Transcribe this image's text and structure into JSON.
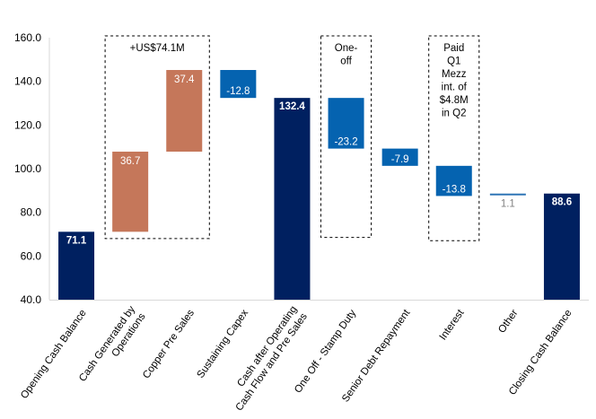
{
  "chart_data": {
    "type": "waterfall",
    "title": "",
    "xlabel": "",
    "ylabel": "",
    "ylim": [
      40,
      160
    ],
    "yticks": [
      40,
      60,
      80,
      100,
      120,
      140,
      160
    ],
    "ytick_labels": [
      "40.0",
      "60.0",
      "80.0",
      "100.0",
      "120.0",
      "140.0",
      "160.0"
    ],
    "grid": false,
    "legend": "none",
    "categories": [
      "Opening Cash Balance",
      "Cash Generated by Operations",
      "Copper Pre Sales",
      "Sustaining Capex",
      "Cash after Operating Cash Flow and Pre Sales",
      "One Off - Stamp Duty",
      "Senior Debt Repayment",
      "Interest",
      "Other",
      "Closing Cash Balance"
    ],
    "category_lines": [
      [
        "Opening Cash Balance"
      ],
      [
        "Cash Generated by",
        "Operations"
      ],
      [
        "Copper Pre Sales"
      ],
      [
        "Sustaining Capex"
      ],
      [
        "Cash after Operating",
        "Cash Flow and Pre Sales"
      ],
      [
        "One Off - Stamp Duty"
      ],
      [
        "Senior Debt Repayment"
      ],
      [
        "Interest"
      ],
      [
        "Other"
      ],
      [
        "Closing Cash Balance"
      ]
    ],
    "bars": [
      {
        "kind": "total",
        "start": 40,
        "end": 71.1,
        "label": "71.1"
      },
      {
        "kind": "increase",
        "start": 71.1,
        "end": 107.8,
        "label": "36.7"
      },
      {
        "kind": "increase",
        "start": 107.8,
        "end": 145.2,
        "label": "37.4"
      },
      {
        "kind": "decrease",
        "start": 145.2,
        "end": 132.4,
        "label": "-12.8"
      },
      {
        "kind": "total",
        "start": 40,
        "end": 132.4,
        "label": "132.4"
      },
      {
        "kind": "decrease",
        "start": 132.4,
        "end": 109.2,
        "label": "-23.2"
      },
      {
        "kind": "decrease",
        "start": 109.2,
        "end": 101.3,
        "label": "-7.9"
      },
      {
        "kind": "decrease",
        "start": 101.3,
        "end": 87.5,
        "label": "-13.8"
      },
      {
        "kind": "other",
        "start": 87.5,
        "end": 88.6,
        "label": "1.1"
      },
      {
        "kind": "total",
        "start": 40,
        "end": 88.6,
        "label": "88.6"
      }
    ],
    "colors": {
      "total": "#002060",
      "increase": "#C5775A",
      "decrease": "#0563B0",
      "other": "#2E75B6",
      "label_light": "#ffffff",
      "label_other": "#7f7f7f",
      "axis": "#d9d9d9"
    },
    "annotations": [
      {
        "text_lines": [
          "+US$74.1M"
        ],
        "spans": [
          1,
          2
        ],
        "y_top": 160,
        "y_bottom": 68
      },
      {
        "text_lines": [
          "One-",
          "off"
        ],
        "spans": [
          5,
          5
        ],
        "y_top": 160,
        "y_bottom": 68.5
      },
      {
        "text_lines": [
          "Paid",
          "Q1",
          "Mezz",
          "int. of",
          "$4.8M",
          "in Q2"
        ],
        "spans": [
          7,
          7
        ],
        "y_top": 160,
        "y_bottom": 67
      }
    ]
  }
}
